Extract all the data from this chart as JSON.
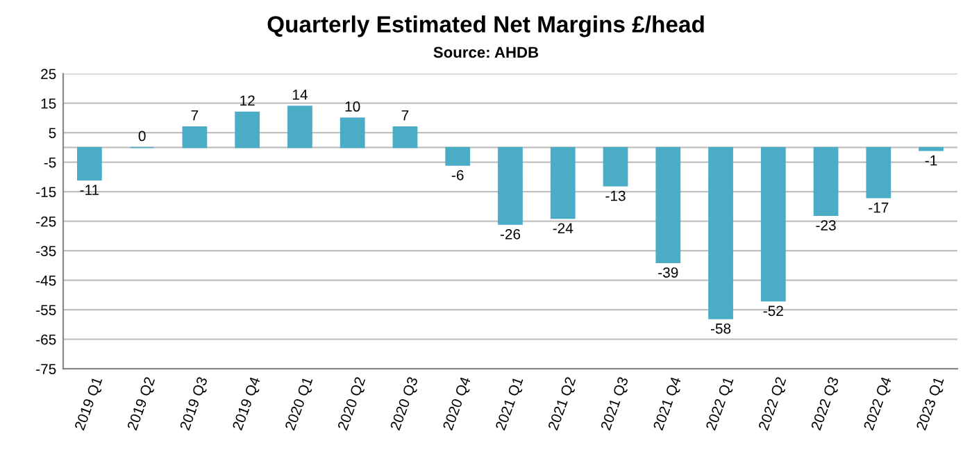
{
  "chart_data": {
    "type": "bar",
    "title": "Quarterly Estimated Net Margins £/head",
    "subtitle": "Source: AHDB",
    "categories": [
      "2019 Q1",
      "2019 Q2",
      "2019 Q3",
      "2019 Q4",
      "2020 Q1",
      "2020 Q2",
      "2020 Q3",
      "2020 Q4",
      "2021 Q1",
      "2021 Q2",
      "2021 Q3",
      "2021 Q4",
      "2022 Q1",
      "2022 Q2",
      "2022 Q3",
      "2022 Q4",
      "2023 Q1"
    ],
    "values": [
      -11,
      0,
      7,
      12,
      14,
      10,
      7,
      -6,
      -26,
      -24,
      -13,
      -39,
      -58,
      -52,
      -23,
      -17,
      -1
    ],
    "color": "#4bacc6",
    "ylim": [
      -75,
      25
    ],
    "yticks": [
      -75,
      -65,
      -55,
      -45,
      -35,
      -25,
      -15,
      -5,
      5,
      15,
      25
    ],
    "grid": "y",
    "data_labels": true
  }
}
